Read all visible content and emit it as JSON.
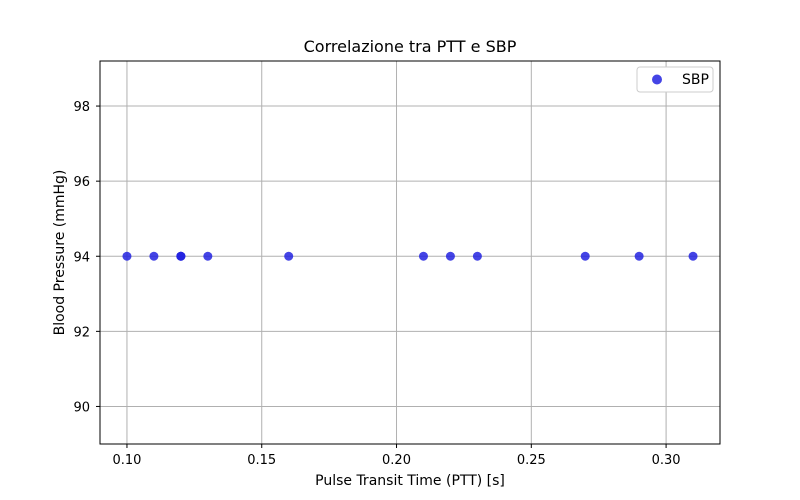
{
  "chart_data": {
    "type": "scatter",
    "title": "Correlazione tra PTT e SBP",
    "xlabel": "Pulse Transit Time (PTT) [s]",
    "ylabel": "Blood Pressure (mmHg)",
    "xlim": [
      0.09,
      0.32
    ],
    "ylim": [
      89,
      99.2
    ],
    "xticks": [
      {
        "value": 0.1,
        "label": "0.10"
      },
      {
        "value": 0.15,
        "label": "0.15"
      },
      {
        "value": 0.2,
        "label": "0.20"
      },
      {
        "value": 0.25,
        "label": "0.25"
      },
      {
        "value": 0.3,
        "label": "0.30"
      }
    ],
    "yticks": [
      {
        "value": 90,
        "label": "90"
      },
      {
        "value": 92,
        "label": "92"
      },
      {
        "value": 94,
        "label": "94"
      },
      {
        "value": 96,
        "label": "96"
      },
      {
        "value": 98,
        "label": "98"
      }
    ],
    "grid": true,
    "legend_position": "top-right",
    "series": [
      {
        "name": "SBP",
        "color": "#2323e0",
        "points": [
          {
            "x": 0.1,
            "y": 94
          },
          {
            "x": 0.11,
            "y": 94
          },
          {
            "x": 0.12,
            "y": 94
          },
          {
            "x": 0.12,
            "y": 94
          },
          {
            "x": 0.12,
            "y": 94
          },
          {
            "x": 0.13,
            "y": 94
          },
          {
            "x": 0.16,
            "y": 94
          },
          {
            "x": 0.21,
            "y": 94
          },
          {
            "x": 0.22,
            "y": 94
          },
          {
            "x": 0.23,
            "y": 94
          },
          {
            "x": 0.27,
            "y": 94
          },
          {
            "x": 0.29,
            "y": 94
          },
          {
            "x": 0.31,
            "y": 94
          }
        ]
      }
    ]
  }
}
